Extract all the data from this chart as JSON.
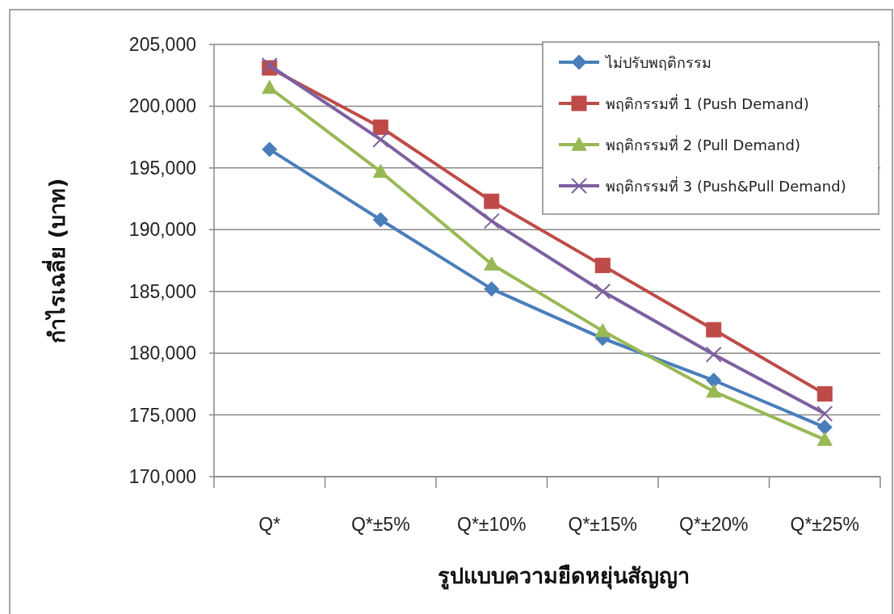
{
  "chart_data": {
    "type": "line",
    "xlabel": "รูปแบบความยืดหยุ่นสัญญา",
    "ylabel": "กำไรเฉลี่ย (บาท)",
    "categories": [
      "Q*",
      "Q*±5%",
      "Q*±10%",
      "Q*±15%",
      "Q*±20%",
      "Q*±25%"
    ],
    "series": [
      {
        "name": "ไม่ปรับพฤติกรรม",
        "color": "#4a7ebb",
        "marker": "diamond",
        "values": [
          196500,
          190800,
          185200,
          181200,
          177800,
          174000
        ]
      },
      {
        "name": "พฤติกรรมที่ 1 (Push Demand)",
        "color": "#be4b48",
        "marker": "square",
        "values": [
          203100,
          198300,
          192300,
          187100,
          181900,
          176700
        ]
      },
      {
        "name": "พฤติกรรมที่ 2 (Pull Demand)",
        "color": "#98b954",
        "marker": "triangle",
        "values": [
          201500,
          194700,
          187200,
          181800,
          176900,
          173000
        ]
      },
      {
        "name": "พฤติกรรมที่ 3 (Push&Pull Demand)",
        "color": "#7d60a0",
        "marker": "cross",
        "values": [
          203300,
          197300,
          190700,
          185000,
          179900,
          175100
        ]
      }
    ],
    "ylim": [
      170000,
      205000
    ],
    "yticks": [
      {
        "value": 170000,
        "label": "170,000"
      },
      {
        "value": 175000,
        "label": "175,000"
      },
      {
        "value": 180000,
        "label": "180,000"
      },
      {
        "value": 185000,
        "label": "185,000"
      },
      {
        "value": 190000,
        "label": "190,000"
      },
      {
        "value": 195000,
        "label": "195,000"
      },
      {
        "value": 200000,
        "label": "200,000"
      },
      {
        "value": 205000,
        "label": "205,000"
      }
    ],
    "grid": "y",
    "legend": "top right"
  }
}
